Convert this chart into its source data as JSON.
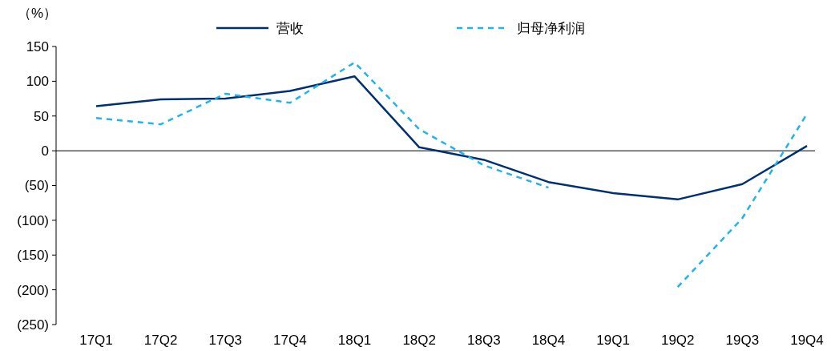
{
  "chart_data": {
    "type": "line",
    "ylabel": "（%）",
    "categories": [
      "17Q1",
      "17Q2",
      "17Q3",
      "17Q4",
      "18Q1",
      "18Q2",
      "18Q3",
      "18Q4",
      "19Q1",
      "19Q2",
      "19Q3",
      "19Q4"
    ],
    "series": [
      {
        "name": "营收",
        "color": "#003074",
        "line_style": "solid",
        "values": [
          64,
          74,
          75,
          86,
          107,
          5,
          -13,
          -45,
          -61,
          -70,
          -48,
          7
        ]
      },
      {
        "name": "归母净利润",
        "color": "#1eb4f0",
        "line_style": "dashed",
        "values": [
          47,
          38,
          82,
          69,
          127,
          31,
          -21,
          -53,
          null,
          -196,
          -97,
          53
        ]
      }
    ],
    "ylim": [
      -250,
      150
    ],
    "yticks": [
      {
        "value": -250,
        "label": "(250)"
      },
      {
        "value": -200,
        "label": "(200)"
      },
      {
        "value": -150,
        "label": "(150)"
      },
      {
        "value": -100,
        "label": "(100)"
      },
      {
        "value": -50,
        "label": "(50)"
      },
      0,
      50,
      100,
      150
    ],
    "ref_lines": [
      {
        "axis": "y",
        "value": 0,
        "color": "#000000"
      }
    ],
    "grid": false,
    "legend": "top"
  }
}
